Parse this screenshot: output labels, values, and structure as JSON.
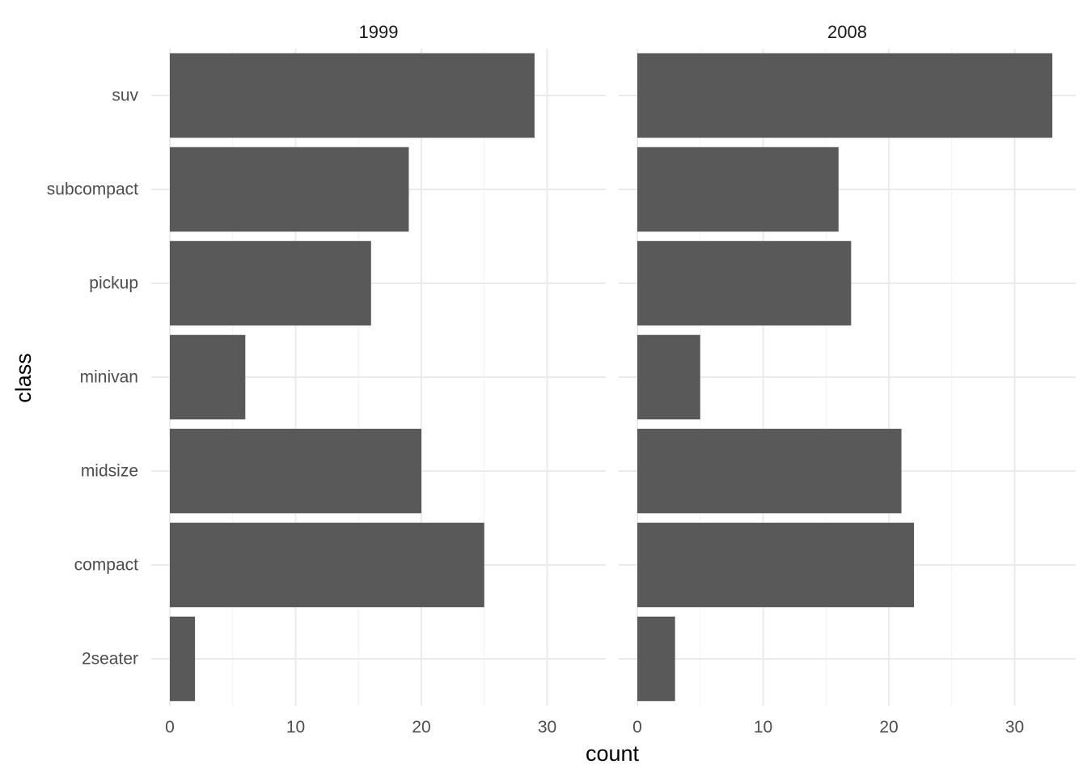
{
  "chart_data": {
    "type": "bar",
    "orientation": "horizontal",
    "xlabel": "count",
    "ylabel": "class",
    "categories": [
      "2seater",
      "compact",
      "midsize",
      "minivan",
      "pickup",
      "subcompact",
      "suv"
    ],
    "xlim": [
      0,
      34.5
    ],
    "x_ticks": [
      "0",
      "10",
      "20",
      "30"
    ],
    "grid": true,
    "bar_color": "#595959",
    "facets": [
      {
        "title": "1999",
        "values": [
          2,
          25,
          20,
          6,
          16,
          19,
          29
        ]
      },
      {
        "title": "2008",
        "values": [
          3,
          22,
          21,
          5,
          17,
          16,
          33
        ]
      }
    ]
  }
}
